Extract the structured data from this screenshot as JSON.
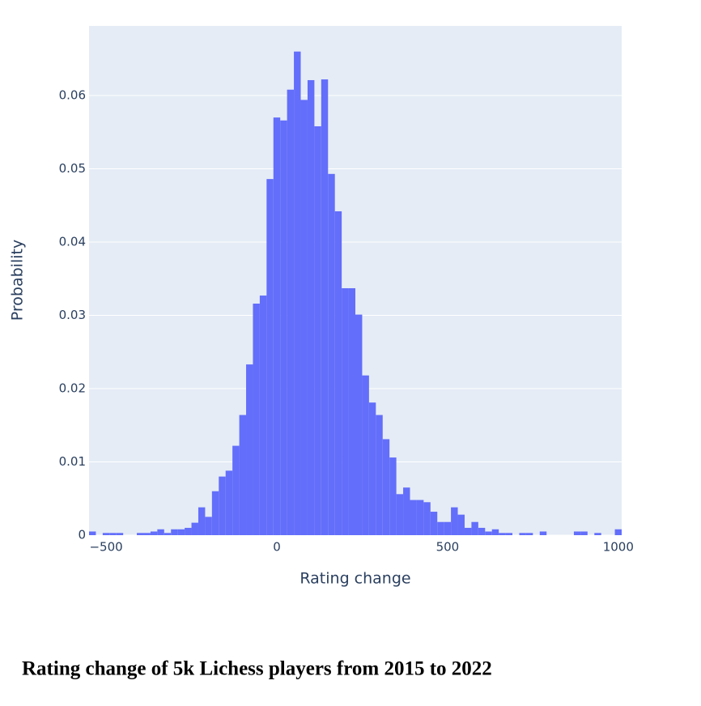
{
  "chart_data": {
    "type": "histogram",
    "caption": "Rating change of 5k Lichess players from 2015 to 2022",
    "xlabel": "Rating change",
    "ylabel": "Probability",
    "color": "#636efa",
    "grid": true,
    "bins": [
      -550,
      -530,
      -510,
      -490,
      -470,
      -450,
      -430,
      -410,
      -390,
      -370,
      -350,
      -330,
      -310,
      -290,
      -270,
      -250,
      -230,
      -210,
      -190,
      -170,
      -150,
      -130,
      -110,
      -90,
      -70,
      -50,
      -30,
      -10,
      10,
      30,
      50,
      70,
      90,
      110,
      130,
      150,
      170,
      190,
      210,
      230,
      250,
      270,
      290,
      310,
      330,
      350,
      370,
      390,
      410,
      430,
      450,
      470,
      490,
      510,
      530,
      550,
      570,
      590,
      610,
      630,
      650,
      670,
      690,
      710,
      730,
      750,
      770,
      790,
      810,
      830,
      850,
      870,
      890,
      910,
      930,
      950,
      970,
      990,
      1010
    ],
    "counts": [
      0.0005,
      0,
      0.0003,
      0.0003,
      0.0003,
      0,
      0,
      0.0003,
      0.0003,
      0.0005,
      0.0008,
      0.0003,
      0.0008,
      0.0008,
      0.001,
      0.0017,
      0.0038,
      0.0025,
      0.006,
      0.008,
      0.0088,
      0.0122,
      0.0164,
      0.0233,
      0.0316,
      0.0327,
      0.0486,
      0.057,
      0.0566,
      0.0608,
      0.066,
      0.0594,
      0.0621,
      0.0558,
      0.0622,
      0.0493,
      0.0442,
      0.0337,
      0.0337,
      0.0301,
      0.0218,
      0.0181,
      0.0164,
      0.0131,
      0.0106,
      0.0056,
      0.0065,
      0.0048,
      0.0048,
      0.0045,
      0.0032,
      0.0018,
      0.0018,
      0.0038,
      0.0028,
      0.001,
      0.0018,
      0.001,
      0.0005,
      0.0008,
      0.0003,
      0.0003,
      0,
      0.0003,
      0.0003,
      0,
      0.0005,
      0,
      0,
      0,
      0,
      0.0005,
      0.0005,
      0,
      0.0003,
      0,
      0,
      0.0008
    ],
    "xlim": [
      -550,
      1010
    ],
    "xticks": [
      {
        "value": -500,
        "label": "−500"
      },
      0,
      500,
      1000
    ],
    "ylim": [
      0,
      0.0695
    ],
    "yticks": [
      0,
      0.01,
      0.02,
      0.03,
      0.04,
      0.05,
      0.06
    ]
  }
}
